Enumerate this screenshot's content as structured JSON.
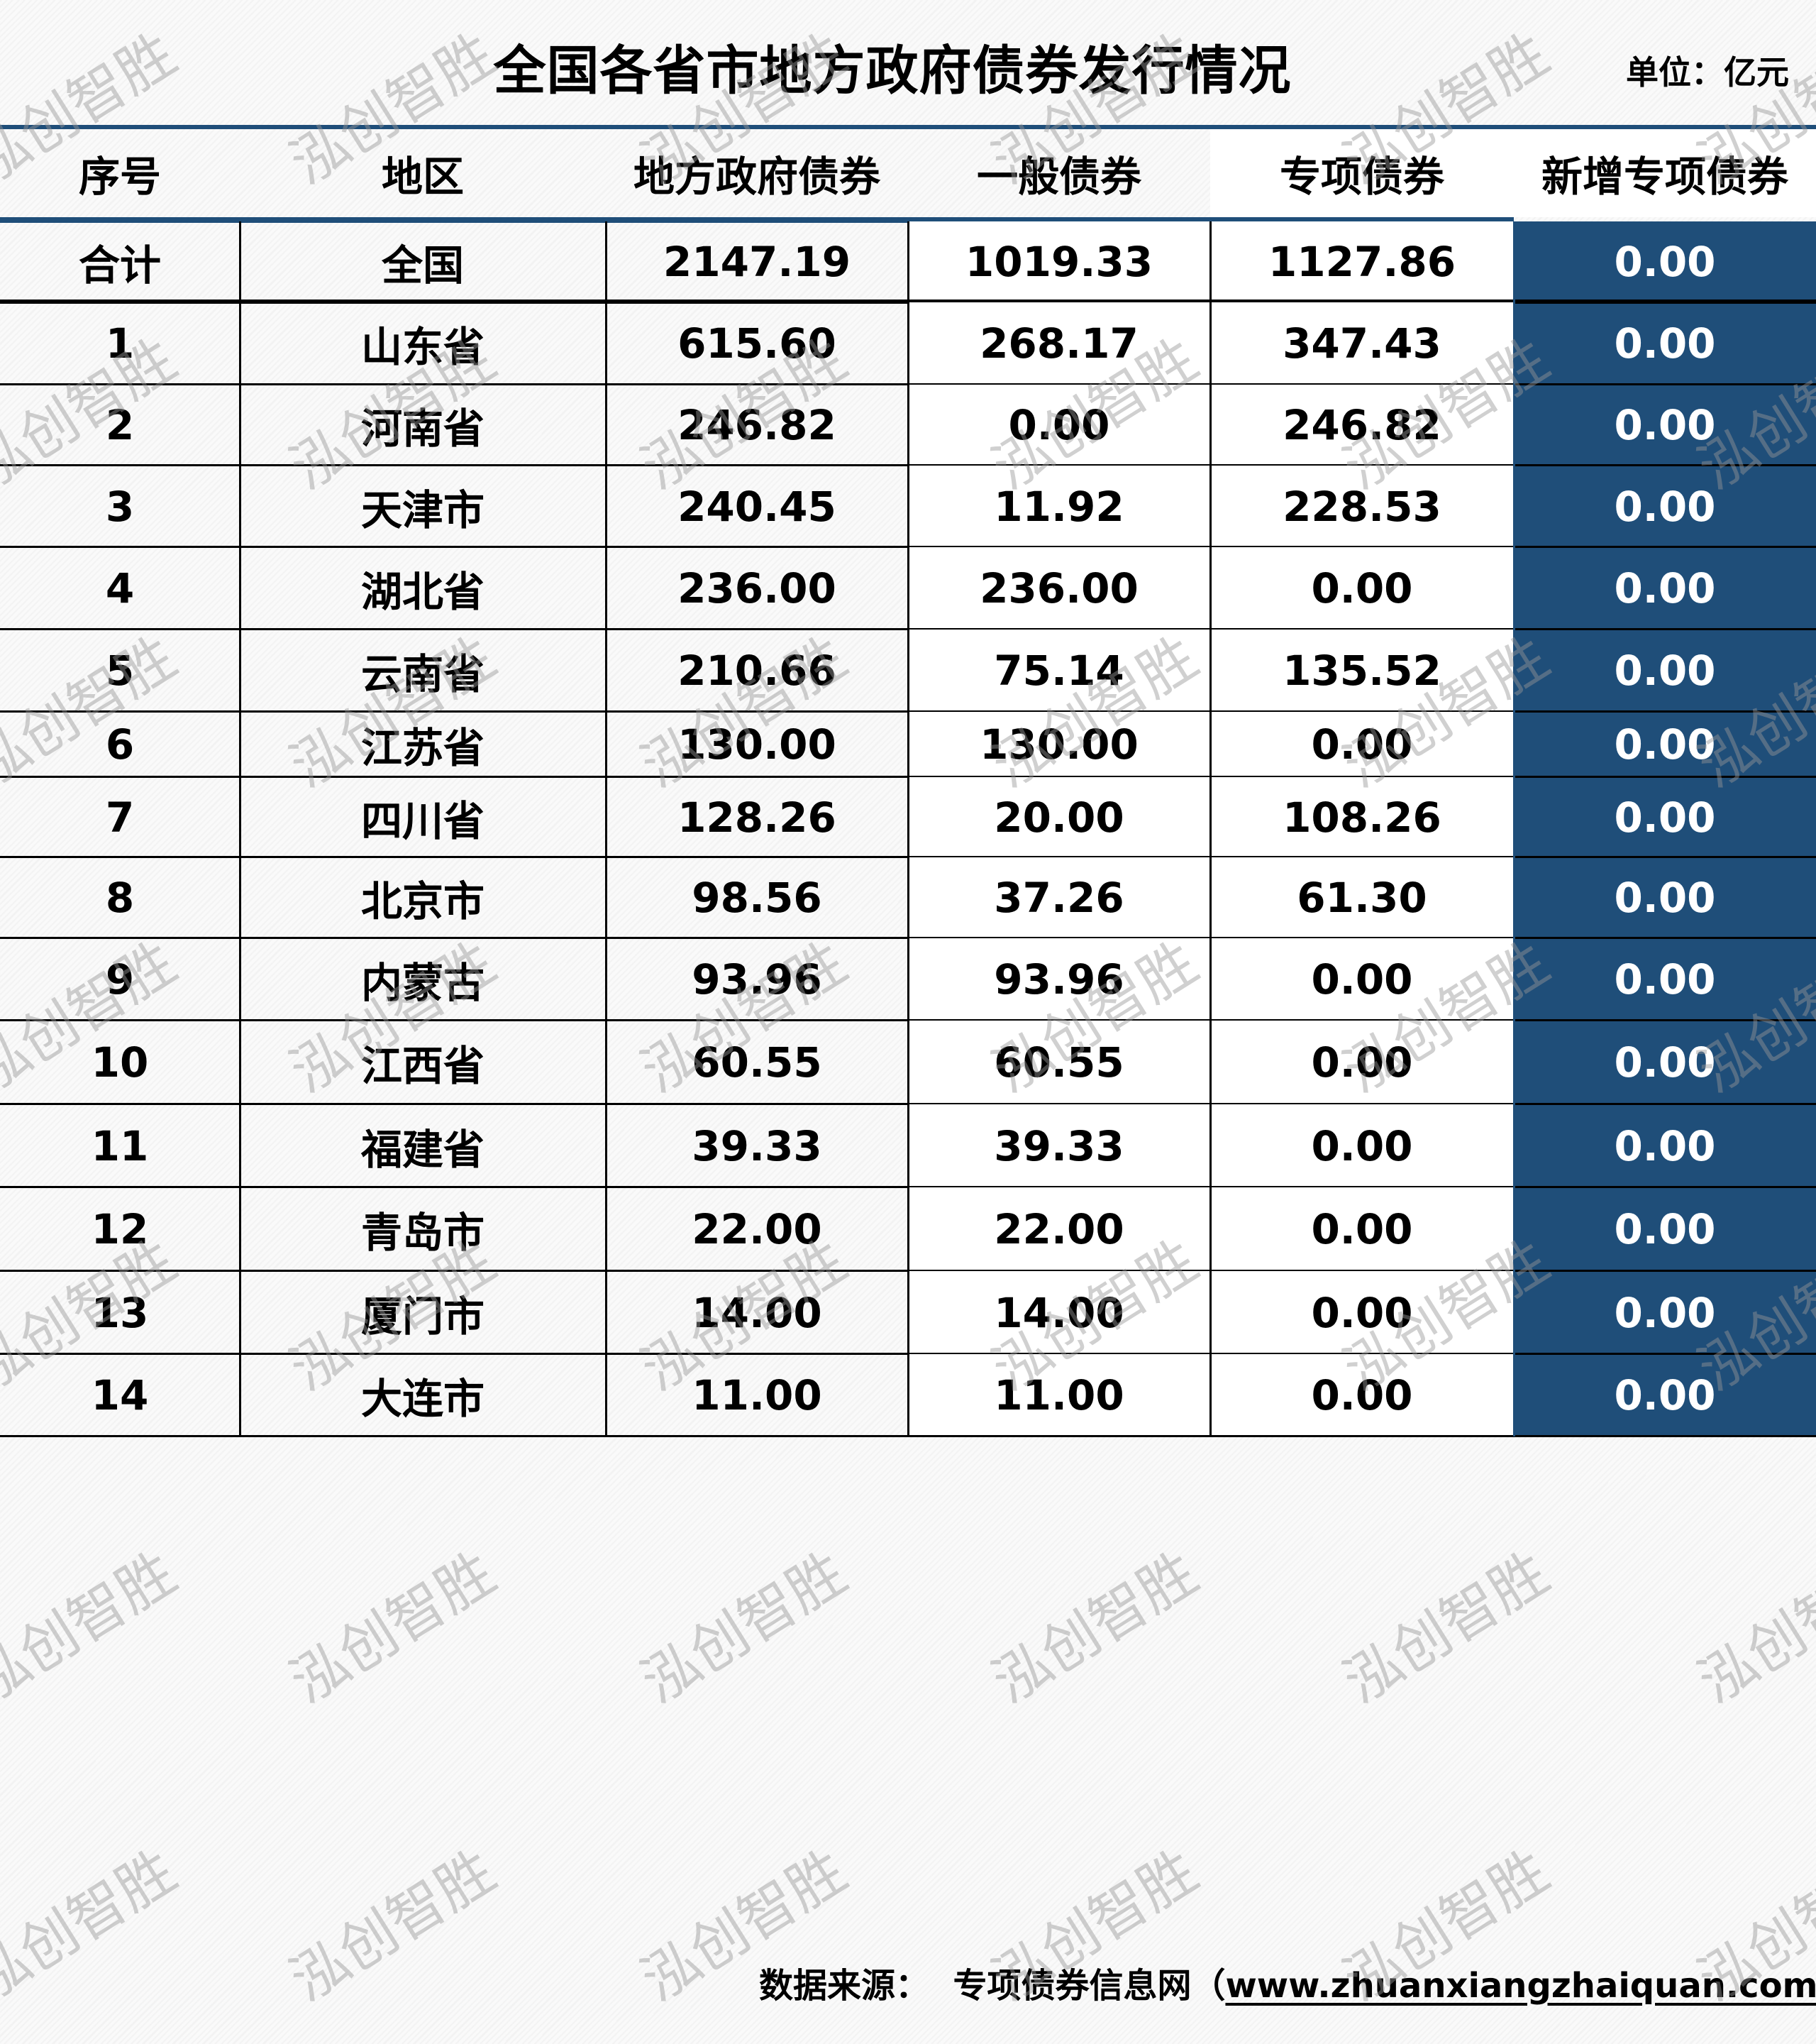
{
  "title": "全国各省市地方政府债券发行情况",
  "unit": "单位：亿元",
  "columns": [
    "序号",
    "地区",
    "地方政府债券",
    "一般债券",
    "专项债券",
    "新增专项债券"
  ],
  "rows": [
    [
      "合计",
      "全国",
      "2147.19",
      "1019.33",
      "1127.86",
      "0.00"
    ],
    [
      "1",
      "山东省",
      "615.60",
      "268.17",
      "347.43",
      "0.00"
    ],
    [
      "2",
      "河南省",
      "246.82",
      "0.00",
      "246.82",
      "0.00"
    ],
    [
      "3",
      "天津市",
      "240.45",
      "11.92",
      "228.53",
      "0.00"
    ],
    [
      "4",
      "湖北省",
      "236.00",
      "236.00",
      "0.00",
      "0.00"
    ],
    [
      "5",
      "云南省",
      "210.66",
      "75.14",
      "135.52",
      "0.00"
    ],
    [
      "6",
      "江苏省",
      "130.00",
      "130.00",
      "0.00",
      "0.00"
    ],
    [
      "7",
      "四川省",
      "128.26",
      "20.00",
      "108.26",
      "0.00"
    ],
    [
      "8",
      "北京市",
      "98.56",
      "37.26",
      "61.30",
      "0.00"
    ],
    [
      "9",
      "内蒙古",
      "93.96",
      "93.96",
      "0.00",
      "0.00"
    ],
    [
      "10",
      "江西省",
      "60.55",
      "60.55",
      "0.00",
      "0.00"
    ],
    [
      "11",
      "福建省",
      "39.33",
      "39.33",
      "0.00",
      "0.00"
    ],
    [
      "12",
      "青岛市",
      "22.00",
      "22.00",
      "0.00",
      "0.00"
    ],
    [
      "13",
      "厦门市",
      "14.00",
      "14.00",
      "0.00",
      "0.00"
    ],
    [
      "14",
      "大连市",
      "11.00",
      "11.00",
      "0.00",
      "0.00"
    ]
  ],
  "footer": {
    "label": "数据来源：",
    "source": "专项债券信息网（",
    "url": "www.zhuanxiangzhaiquan.com",
    "close": "）"
  },
  "watermark": "泓创智胜",
  "colors": {
    "accent": "#1f4e79",
    "accent_text": "#ffffff"
  }
}
